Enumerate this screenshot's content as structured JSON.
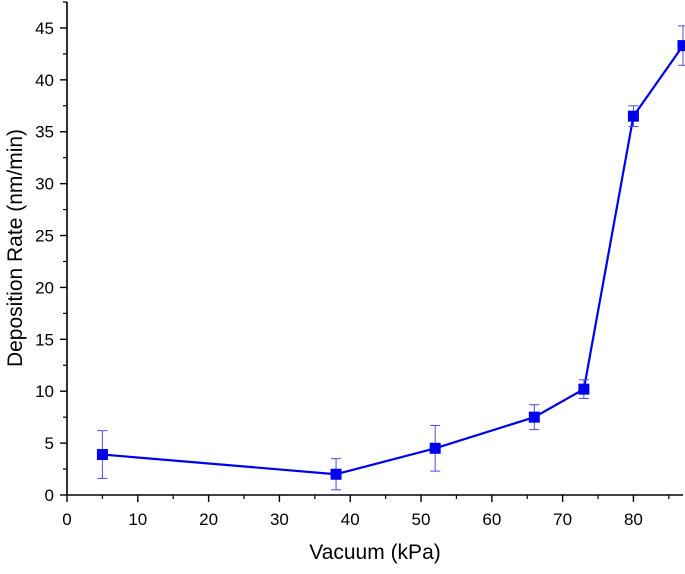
{
  "chart_data": {
    "type": "line",
    "xlabel": "Vacuum (kPa)",
    "ylabel": "Deposition Rate (nm/min)",
    "xlim": [
      0,
      87
    ],
    "ylim": [
      0,
      47.5
    ],
    "x_ticks": [
      0,
      10,
      20,
      30,
      40,
      50,
      60,
      70,
      80
    ],
    "y_ticks": [
      0,
      5,
      10,
      15,
      20,
      25,
      30,
      35,
      40,
      45
    ],
    "series": [
      {
        "color": "#0000ee",
        "marker": "square",
        "x": [
          5,
          38,
          52,
          66,
          73,
          80,
          87
        ],
        "y": [
          3.9,
          2.0,
          4.5,
          7.5,
          10.2,
          36.5,
          43.3
        ],
        "error": [
          2.3,
          1.5,
          2.2,
          1.2,
          0.9,
          1.0,
          1.9
        ]
      }
    ],
    "grid": false,
    "legend": "none"
  }
}
